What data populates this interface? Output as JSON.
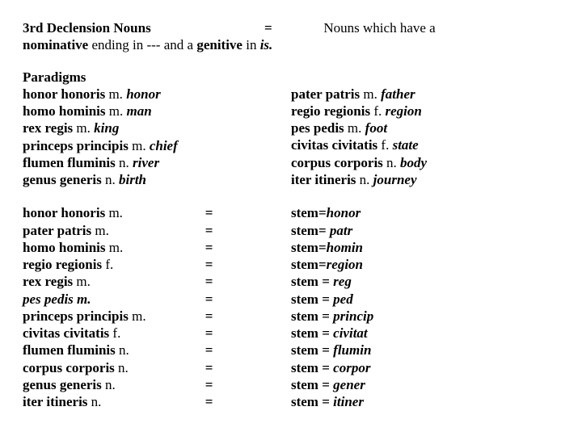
{
  "header": {
    "title_bold": "3rd Declension Nouns",
    "gap1": "                                 ",
    "equals": "=",
    "gap2": "               ",
    "tail_plain": "Nouns which have a",
    "line2_lead": "nominative",
    "line2_mid": " ending in ---  and a ",
    "line2_bold2": "genitive",
    "line2_mid2": " in ",
    "line2_italic": "is."
  },
  "paradigms": {
    "title": "Paradigms",
    "left": [
      {
        "a": "honor honoris",
        "b": " m. ",
        "c": "honor"
      },
      {
        "a": "homo hominis",
        "b": " m. ",
        "c": "man"
      },
      {
        "a": "rex regis",
        "b": " m. ",
        "c": "king"
      },
      {
        "a": "princeps principis",
        "b": " m. ",
        "c": "chief"
      },
      {
        "a": "flumen fluminis",
        "b": " n. ",
        "c": "river"
      },
      {
        "a": "genus generis",
        "b": " n. ",
        "c": "birth"
      }
    ],
    "right": [
      {
        "a": "pater patris",
        "b": " m. ",
        "c": "father"
      },
      {
        "a": "regio regionis",
        "b": " f. ",
        "c": "region"
      },
      {
        "a": "pes pedis",
        "b": " m. ",
        "c": "foot"
      },
      {
        "a": "civitas civitatis",
        "b": " f. ",
        "c": "state"
      },
      {
        "a": "corpus corporis",
        "b": " n. ",
        "c": "body"
      },
      {
        "a": "iter itineris",
        "b": " n. ",
        "c": "journey"
      }
    ]
  },
  "stems": {
    "col1": [
      {
        "a": "honor honoris",
        "b": " m."
      },
      {
        "a": "pater patris",
        "b": " m."
      },
      {
        "a": "homo hominis",
        "b": " m."
      },
      {
        "a": "regio regionis",
        "b": " f."
      },
      {
        "a": "rex  regis",
        "b": " m."
      },
      {
        "a": "pes  pedis m.",
        "b": ""
      },
      {
        "a": "princeps  principis",
        "b": " m."
      },
      {
        "a": "civitas  civitatis ",
        "b": " f."
      },
      {
        "a": "flumen  fluminis",
        "b": " n."
      },
      {
        "a": "corpus corporis",
        "b": " n."
      },
      {
        "a": "genus  generis",
        "b": " n."
      },
      {
        "a": "iter  itineris ",
        "b": " n."
      }
    ],
    "col2": [
      "=",
      "=",
      "=",
      "=",
      "=",
      "=",
      "=",
      "=",
      "=",
      "=",
      "=",
      "="
    ],
    "col3": [
      {
        "a": "stem=",
        "b": "honor"
      },
      {
        "a": "stem= ",
        "b": "patr"
      },
      {
        "a": "stem=",
        "b": "homin"
      },
      {
        "a": "stem=",
        "b": "region"
      },
      {
        "a": "stem = ",
        "b": "reg"
      },
      {
        "a": "stem = ",
        "b": "ped"
      },
      {
        "a": "stem = ",
        "b": "princip"
      },
      {
        "a": "stem = ",
        "b": "civitat"
      },
      {
        "a": "stem = ",
        "b": "flumin"
      },
      {
        "a": "stem = ",
        "b": "corpor"
      },
      {
        "a": "stem = ",
        "b": "gener"
      },
      {
        "a": "stem = ",
        "b": "itiner"
      }
    ]
  }
}
